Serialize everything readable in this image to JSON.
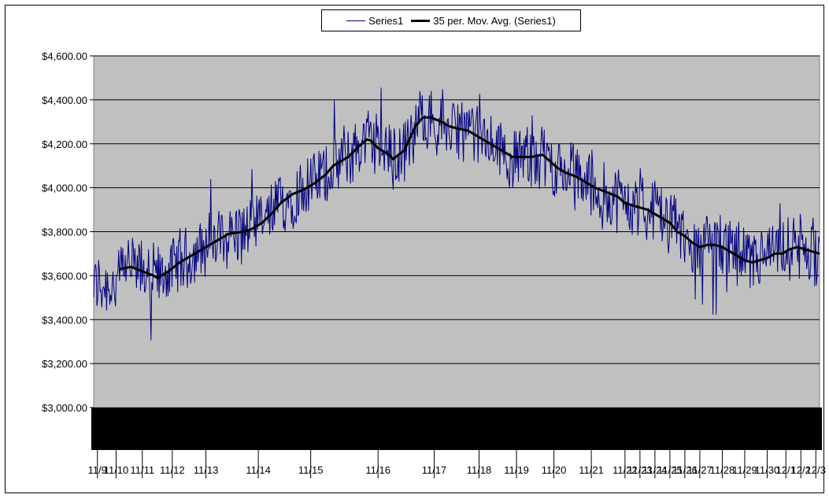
{
  "chart_data": {
    "type": "line",
    "legend": {
      "series1_label": "Series1",
      "avg_label": "35 per. Mov. Avg. (Series1)",
      "placement": "top-center"
    },
    "ylim": [
      3000,
      4600
    ],
    "y_ticks": [
      "$3,000.00",
      "$3,200.00",
      "$3,400.00",
      "$3,600.00",
      "$3,800.00",
      "$4,000.00",
      "$4,200.00",
      "$4,400.00",
      "$4,600.00"
    ],
    "y_tick_values": [
      3000,
      3200,
      3400,
      3600,
      3800,
      4000,
      4200,
      4400,
      4600
    ],
    "x_ticks": [
      {
        "label": "11/9",
        "x": 0.5
      },
      {
        "label": "11/10",
        "x": 3.0
      },
      {
        "label": "11/11",
        "x": 6.5
      },
      {
        "label": "11/12",
        "x": 10.5
      },
      {
        "label": "11/13",
        "x": 15.0
      },
      {
        "label": "11/14",
        "x": 22.0
      },
      {
        "label": "11/15",
        "x": 29.0
      },
      {
        "label": "11/16",
        "x": 38.0
      },
      {
        "label": "11/17",
        "x": 45.5
      },
      {
        "label": "11/18",
        "x": 51.5
      },
      {
        "label": "11/19",
        "x": 56.5
      },
      {
        "label": "11/20",
        "x": 61.5
      },
      {
        "label": "11/21",
        "x": 66.5
      },
      {
        "label": "11/22",
        "x": 71.0
      },
      {
        "label": "11/23",
        "x": 73.0
      },
      {
        "label": "11/24",
        "x": 75.0
      },
      {
        "label": "11/25",
        "x": 77.0
      },
      {
        "label": "11/26",
        "x": 79.0
      },
      {
        "label": "11/27",
        "x": 81.0
      },
      {
        "label": "11/28",
        "x": 84.0
      },
      {
        "label": "11/29",
        "x": 87.0
      },
      {
        "label": "11/30",
        "x": 90.0
      },
      {
        "label": "12/1",
        "x": 92.5
      },
      {
        "label": "12/2",
        "x": 94.5
      },
      {
        "label": "12/3",
        "x": 96.5
      }
    ],
    "x_range": [
      0,
      97
    ],
    "grid": true,
    "series": [
      {
        "name": "35 per. Mov. Avg. (Series1)",
        "x": [
          3.5,
          5,
          6.5,
          8,
          8.5,
          10,
          11.5,
          13,
          15,
          17,
          18,
          20,
          21,
          22.5,
          24,
          25,
          26.5,
          28,
          29.5,
          31,
          32,
          34,
          35.5,
          36.5,
          37,
          38,
          39.5,
          40,
          41.5,
          43,
          44,
          45,
          46.5,
          47.5,
          48.5,
          50,
          51,
          52.5,
          54,
          55,
          56,
          57,
          58.5,
          60,
          61,
          62,
          63,
          64.5,
          66,
          67,
          68.5,
          70,
          71,
          72,
          73,
          74,
          75,
          76,
          77,
          78,
          79,
          80,
          81,
          82,
          83,
          84,
          85,
          86,
          87,
          88,
          89,
          90,
          91,
          92,
          93,
          94,
          96,
          97
        ],
        "y": [
          3630,
          3640,
          3620,
          3600,
          3590,
          3620,
          3660,
          3690,
          3730,
          3770,
          3790,
          3800,
          3810,
          3840,
          3890,
          3930,
          3970,
          3990,
          4020,
          4060,
          4100,
          4140,
          4190,
          4220,
          4215,
          4180,
          4150,
          4130,
          4170,
          4280,
          4320,
          4320,
          4300,
          4280,
          4270,
          4260,
          4240,
          4210,
          4180,
          4160,
          4140,
          4140,
          4140,
          4150,
          4120,
          4090,
          4070,
          4050,
          4020,
          4000,
          3980,
          3960,
          3930,
          3920,
          3910,
          3900,
          3880,
          3860,
          3840,
          3800,
          3780,
          3750,
          3730,
          3740,
          3740,
          3730,
          3710,
          3690,
          3670,
          3660,
          3670,
          3680,
          3700,
          3700,
          3720,
          3730,
          3710,
          3700
        ]
      }
    ]
  }
}
